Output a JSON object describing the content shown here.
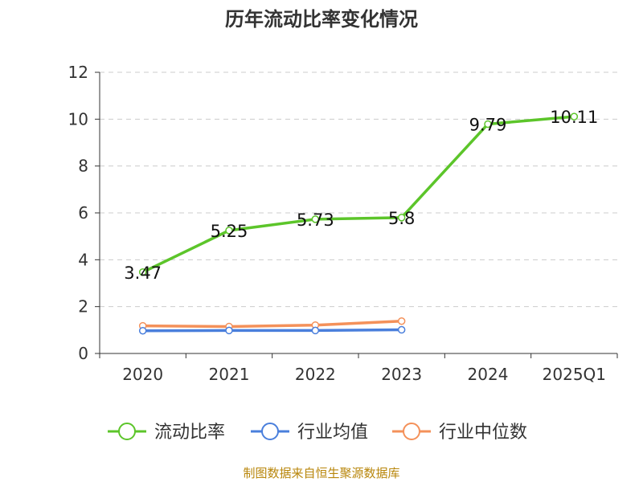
{
  "title": "历年流动比率变化情况",
  "footer": "制图数据来自恒生聚源数据库",
  "chart_data": {
    "type": "line",
    "categories": [
      "2020",
      "2021",
      "2022",
      "2023",
      "2024",
      "2025Q1"
    ],
    "ylim": [
      0,
      12
    ],
    "yticks": [
      0,
      2,
      4,
      6,
      8,
      10,
      12
    ],
    "grid": true,
    "legend_position": "bottom",
    "series": [
      {
        "name": "流动比率",
        "color": "#5cc52a",
        "values": [
          3.47,
          5.25,
          5.73,
          5.8,
          9.79,
          10.11
        ],
        "labels": [
          "3.47",
          "5.25",
          "5.73",
          "5.8",
          "9.79",
          "10.11"
        ]
      },
      {
        "name": "行业均值",
        "color": "#4a7fdc",
        "values": [
          0.97,
          0.98,
          0.98,
          1.01,
          null,
          null
        ]
      },
      {
        "name": "行业中位数",
        "color": "#f4915a",
        "values": [
          1.18,
          1.15,
          1.21,
          1.38,
          null,
          null
        ]
      }
    ]
  }
}
